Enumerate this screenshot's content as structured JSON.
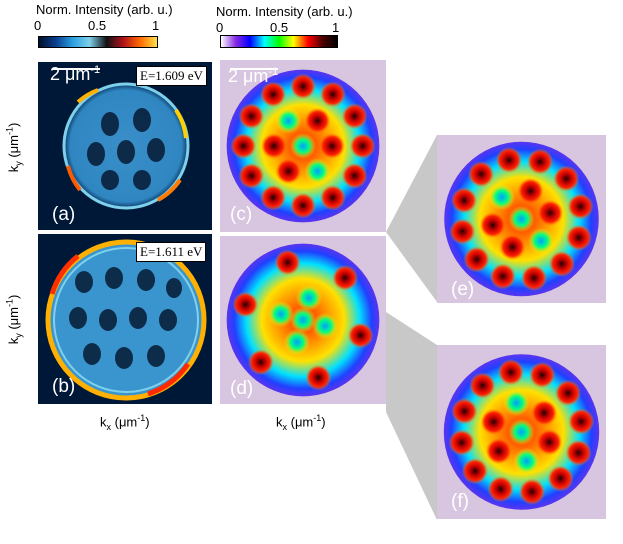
{
  "colorbar_left": {
    "title": "Norm. Intensity (arb. u.)",
    "ticks": [
      "0",
      "0.5",
      "1"
    ],
    "gradient": [
      "#00102a",
      "#0a3d8f",
      "#2aa0e0",
      "#7fd0ea",
      "#111111",
      "#b0121a",
      "#ff6a00",
      "#ffe24a"
    ]
  },
  "colorbar_right": {
    "title": "Norm. Intensity (arb. u.)",
    "ticks": [
      "0",
      "0.5",
      "1"
    ],
    "gradient": [
      "#ffffff",
      "#8a2be2",
      "#0000ff",
      "#00ffff",
      "#00ff00",
      "#ffff00",
      "#ff0000",
      "#4a0000",
      "#000000"
    ]
  },
  "panels": {
    "a": {
      "label": "(a)",
      "energy": "E=1.609 eV",
      "scale": "2 μm"
    },
    "b": {
      "label": "(b)",
      "energy": "E=1.611 eV"
    },
    "c": {
      "label": "(c)",
      "scale": "2 μm"
    },
    "d": {
      "label": "(d)"
    },
    "e": {
      "label": "(e)"
    },
    "f": {
      "label": "(f)"
    }
  },
  "axes": {
    "ky_label": "k",
    "ky_sub": "y",
    "unit": " (μm",
    "unit_sup": "-1",
    "unit_close": ")",
    "kx_label": "k",
    "kx_sub": "x"
  },
  "scale_sup": "-1"
}
